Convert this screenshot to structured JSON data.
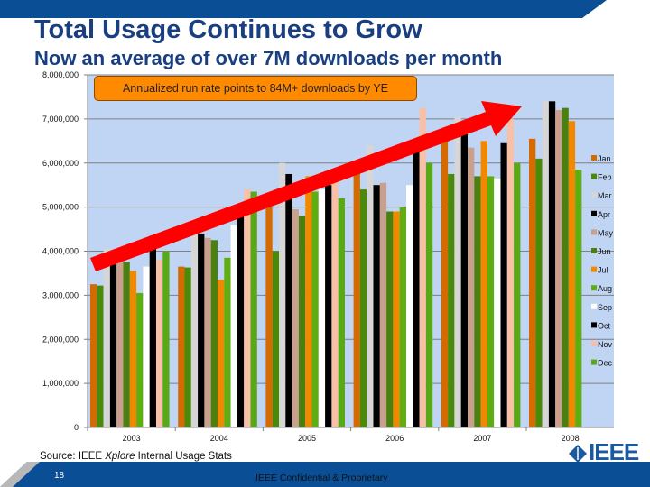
{
  "slide": {
    "title": "Total Usage Continues to Grow",
    "subtitle": "Now an average of over 7M downloads per month",
    "callout": "Annualized run rate points to 84M+ downloads by YE",
    "source_prefix": "Source: IEEE ",
    "source_italic": "Xplore",
    "source_suffix": " Internal Usage Stats",
    "page_number": "18",
    "confidential": "IEEE Confidential & Proprietary",
    "logo_text": "IEEE",
    "brand_color": "#0a4f96",
    "title_color": "#1a3f80"
  },
  "chart_data": {
    "type": "bar",
    "title": "",
    "xlabel": "",
    "ylabel": "",
    "ylim": [
      0,
      8000000
    ],
    "yticks": [
      0,
      1000000,
      2000000,
      3000000,
      4000000,
      5000000,
      6000000,
      7000000,
      8000000
    ],
    "ytick_labels": [
      "0",
      "1,000,000",
      "2,000,000",
      "3,000,000",
      "4,000,000",
      "5,000,000",
      "6,000,000",
      "7,000,000",
      "8,000,000"
    ],
    "categories": [
      "2003",
      "2004",
      "2005",
      "2006",
      "2007",
      "2008"
    ],
    "grid": true,
    "legend_position": "right",
    "series": [
      {
        "name": "Jan",
        "color": "#d46a00",
        "values": [
          3250000,
          3650000,
          5000000,
          5850000,
          6550000,
          6550000
        ]
      },
      {
        "name": "Feb",
        "color": "#4a8a0a",
        "values": [
          3220000,
          3630000,
          4000000,
          5400000,
          5750000,
          6100000
        ]
      },
      {
        "name": "Mar",
        "color": "#d6d6d6",
        "values": [
          4050000,
          4750000,
          6000000,
          6400000,
          7050000,
          7400000
        ]
      },
      {
        "name": "Apr",
        "color": "#000000",
        "values": [
          3700000,
          4400000,
          5750000,
          5500000,
          6650000,
          7400000
        ]
      },
      {
        "name": "May",
        "color": "#c9a08e",
        "values": [
          4050000,
          4300000,
          4950000,
          5550000,
          6350000,
          7200000
        ]
      },
      {
        "name": "Jun",
        "color": "#4a8010",
        "values": [
          3750000,
          4250000,
          4800000,
          4900000,
          5700000,
          7250000
        ]
      },
      {
        "name": "Jul",
        "color": "#f08800",
        "values": [
          3550000,
          3350000,
          5700000,
          4900000,
          6500000,
          6950000
        ]
      },
      {
        "name": "Aug",
        "color": "#5eae12",
        "values": [
          3050000,
          3850000,
          5350000,
          5000000,
          5700000,
          5850000
        ]
      },
      {
        "name": "Sep",
        "color": "#ffffff",
        "values": [
          3650000,
          4600000,
          5400000,
          5500000,
          5650000,
          null
        ]
      },
      {
        "name": "Oct",
        "color": "#000000",
        "values": [
          4350000,
          4800000,
          5500000,
          6450000,
          6450000,
          null
        ]
      },
      {
        "name": "Nov",
        "color": "#f8c0a6",
        "values": [
          3800000,
          5400000,
          5850000,
          7250000,
          7000000,
          null
        ]
      },
      {
        "name": "Dec",
        "color": "#58a818",
        "values": [
          4000000,
          5350000,
          5200000,
          6000000,
          6000000,
          null
        ]
      }
    ]
  }
}
